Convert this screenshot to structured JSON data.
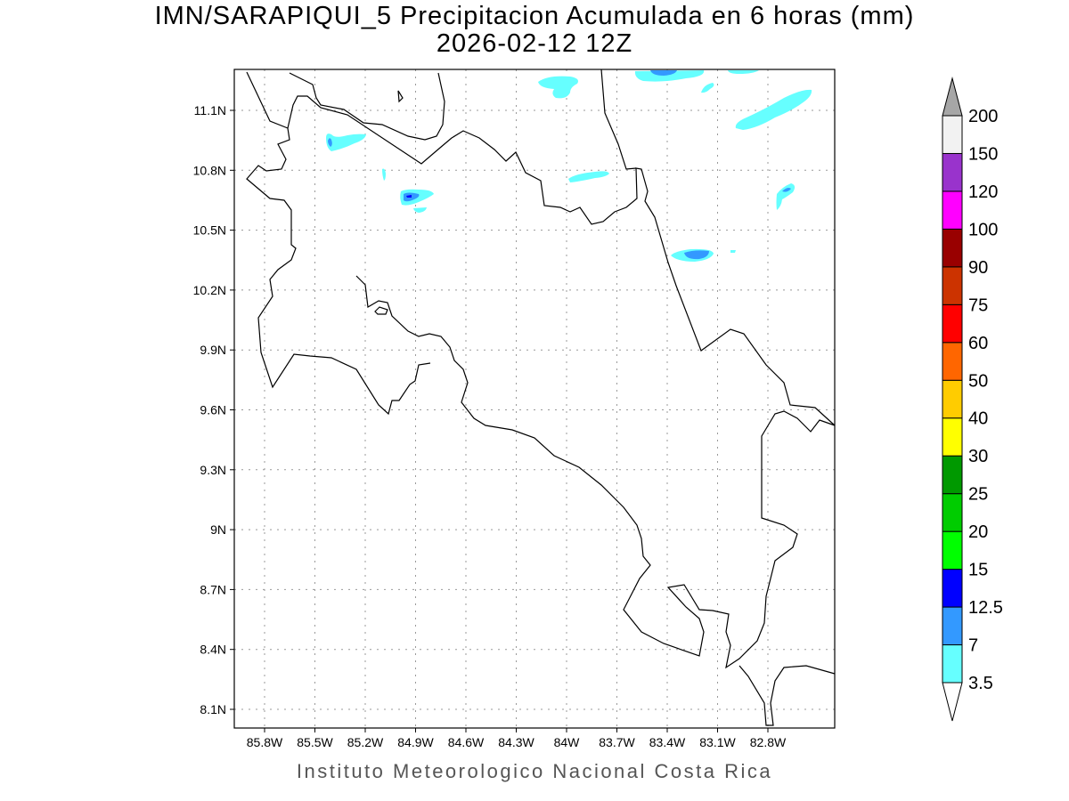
{
  "title": {
    "line1": "IMN/SARAPIQUI_5 Precipitacion Acumulada en 6 horas (mm)",
    "line2": "2026-02-12 12Z"
  },
  "footer": "Instituto Meteorologico Nacional Costa Rica",
  "map": {
    "lon_ticks": [
      "85.8W",
      "85.5W",
      "85.2W",
      "84.9W",
      "84.6W",
      "84.3W",
      "84W",
      "83.7W",
      "83.4W",
      "83.1W",
      "82.8W"
    ],
    "lat_ticks": [
      "11.1N",
      "10.8N",
      "10.5N",
      "10.2N",
      "9.9N",
      "9.6N",
      "9.3N",
      "9N",
      "8.7N",
      "8.4N",
      "8.1N"
    ],
    "grid": "dotted"
  },
  "colorbar": {
    "levels": [
      "3.5",
      "7",
      "12.5",
      "15",
      "20",
      "25",
      "30",
      "40",
      "50",
      "60",
      "75",
      "90",
      "100",
      "120",
      "150",
      "200"
    ],
    "colors": [
      "#66ffff",
      "#3399ff",
      "#0000ff",
      "#00ff00",
      "#00cc00",
      "#009900",
      "#ffff00",
      "#ffcc00",
      "#ff6600",
      "#ff0000",
      "#cc3300",
      "#990000",
      "#ff00ff",
      "#9933cc",
      "#f2f2f2"
    ],
    "over_color": "#a6a6a6",
    "under_color": "#ffffff"
  }
}
